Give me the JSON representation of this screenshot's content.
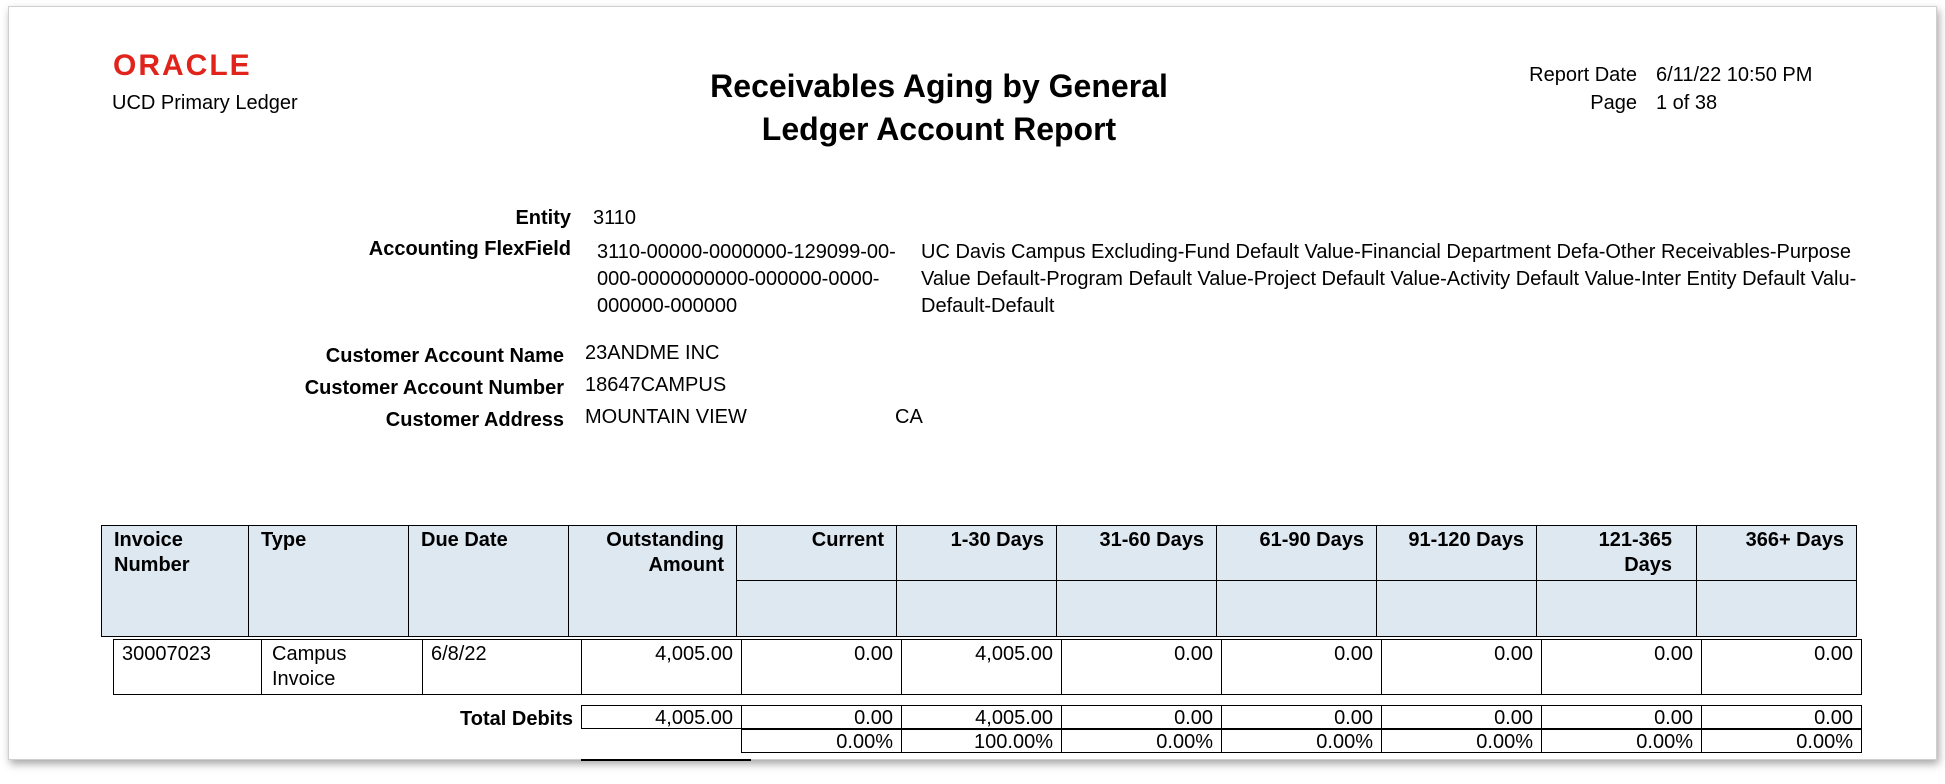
{
  "header": {
    "logo": "ORACLE",
    "ledger": "UCD Primary Ledger",
    "title_line1": "Receivables Aging by General",
    "title_line2": "Ledger Account Report",
    "report_date_label": "Report Date",
    "report_date_value": "6/11/22 10:50 PM",
    "page_label": "Page",
    "page_value": "1 of 38"
  },
  "entity": {
    "entity_label": "Entity",
    "entity_value": "3110",
    "flex_label": "Accounting FlexField",
    "flex_code": "3110-00000-0000000-129099-00-000-0000000000-000000-0000-000000-000000",
    "flex_desc": "UC Davis Campus Excluding-Fund Default Value-Financial Department Defa-Other Receivables-Purpose Value Default-Program Default Value-Project Default Value-Activity Default Value-Inter Entity Default Valu-Default-Default"
  },
  "customer": {
    "name_label": "Customer Account Name",
    "name_value": "23ANDME INC",
    "number_label": "Customer Account Number",
    "number_value": "18647CAMPUS",
    "address_label": "Customer Address",
    "address_city": "MOUNTAIN VIEW",
    "address_state": "CA"
  },
  "table": {
    "columns": [
      "Invoice Number",
      "Type",
      "Due Date",
      "Outstanding Amount",
      "Current",
      "1-30 Days",
      "31-60 Days",
      "61-90 Days",
      "91-120 Days",
      "121-365 Days",
      "366+ Days"
    ],
    "rows": [
      [
        "30007023",
        "Campus Invoice",
        "6/8/22",
        "4,005.00",
        "0.00",
        "4,005.00",
        "0.00",
        "0.00",
        "0.00",
        "0.00",
        "0.00"
      ]
    ],
    "total_label": "Total Debits",
    "totals": [
      "4,005.00",
      "0.00",
      "4,005.00",
      "0.00",
      "0.00",
      "0.00",
      "0.00",
      "0.00"
    ],
    "percents": [
      "0.00%",
      "100.00%",
      "0.00%",
      "0.00%",
      "0.00%",
      "0.00%",
      "0.00%"
    ]
  },
  "colors": {
    "oracle_red": "#e0231b",
    "header_fill": "#dde8f1"
  }
}
